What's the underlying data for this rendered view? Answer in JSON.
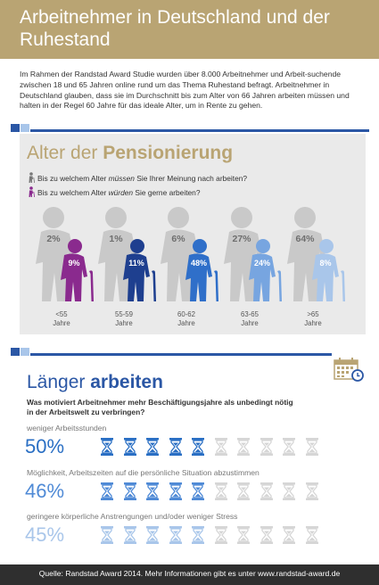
{
  "header": {
    "title": "Arbeitnehmer in Deutschland und der Ruhestand"
  },
  "intro": {
    "text": "Im Rahmen der Randstad Award Studie wurden über 8.000 Arbeitnehmer und Arbeit-suchende zwischen 18 und 65 Jahren online rund um das Thema Ruhestand befragt. Arbeitnehmer in Deutschland glauben, dass sie im Durchschnitt bis zum Alter von 66 Jahren arbeiten müssen und halten in der Regel 60 Jahre für das ideale Alter, um in Rente zu gehen."
  },
  "colors": {
    "gold": "#b9a473",
    "blue_bar": "#2b57a5",
    "light_blue_bar": "#a9c6ea",
    "panel_gray": "#eaeaea",
    "figure_gray": "#c9c9c9",
    "dark_text": "#333333"
  },
  "pension": {
    "title_light": "Alter der ",
    "title_bold": "Pensionierung",
    "q1_icon": "elderly-person-gray-icon",
    "q1_before": "Bis zu welchem Alter ",
    "q1_em": "müssen",
    "q1_after": " Sie Ihrer Meinung nach arbeiten?",
    "q2_icon": "elderly-person-purple-icon",
    "q2_before": "Bis zu welchem Alter ",
    "q2_em": "würden",
    "q2_after": " Sie gerne arbeiten?",
    "groups": [
      {
        "age": "<55",
        "unit": "Jahre",
        "must": "2%",
        "would": "9%",
        "color": "#8a2a8e"
      },
      {
        "age": "55-59",
        "unit": "Jahre",
        "must": "1%",
        "would": "11%",
        "color": "#1e3f8f"
      },
      {
        "age": "60-62",
        "unit": "Jahre",
        "must": "6%",
        "would": "48%",
        "color": "#2f6fc9"
      },
      {
        "age": "63-65",
        "unit": "Jahre",
        "must": "27%",
        "would": "24%",
        "color": "#77a5e0"
      },
      {
        "age": ">65",
        "unit": "Jahre",
        "must": "64%",
        "would": "8%",
        "color": "#a9c6ea"
      }
    ]
  },
  "work": {
    "title_light": "Länger ",
    "title_bold": "arbeiten",
    "calendar_icon": "calendar-icon",
    "question": "Was motiviert Arbeitnehmer mehr Beschäftigungsjahre als unbedingt nötig in der Arbeitswelt zu verbringen?",
    "items": [
      {
        "label": "weniger Arbeitsstunden",
        "pct": "50%",
        "value": 50,
        "color": "#2a6fc4",
        "glass_color": "#2a6fc4"
      },
      {
        "label": "Möglichkeit, Arbeitszeiten auf die persönliche Situation abzustimmen",
        "pct": "46%",
        "value": 46,
        "color": "#4f8ad6",
        "glass_color": "#4f8ad6"
      },
      {
        "label": "geringere körperliche Anstrengungen und/oder weniger Stress",
        "pct": "45%",
        "value": 45,
        "color": "#a9c6ea",
        "glass_color": "#a9c6ea"
      }
    ],
    "glass_icon": "hourglass-icon"
  },
  "footer": {
    "text": "Quelle: Randstad Award 2014. Mehr Informationen gibt es unter www.randstad-award.de"
  }
}
